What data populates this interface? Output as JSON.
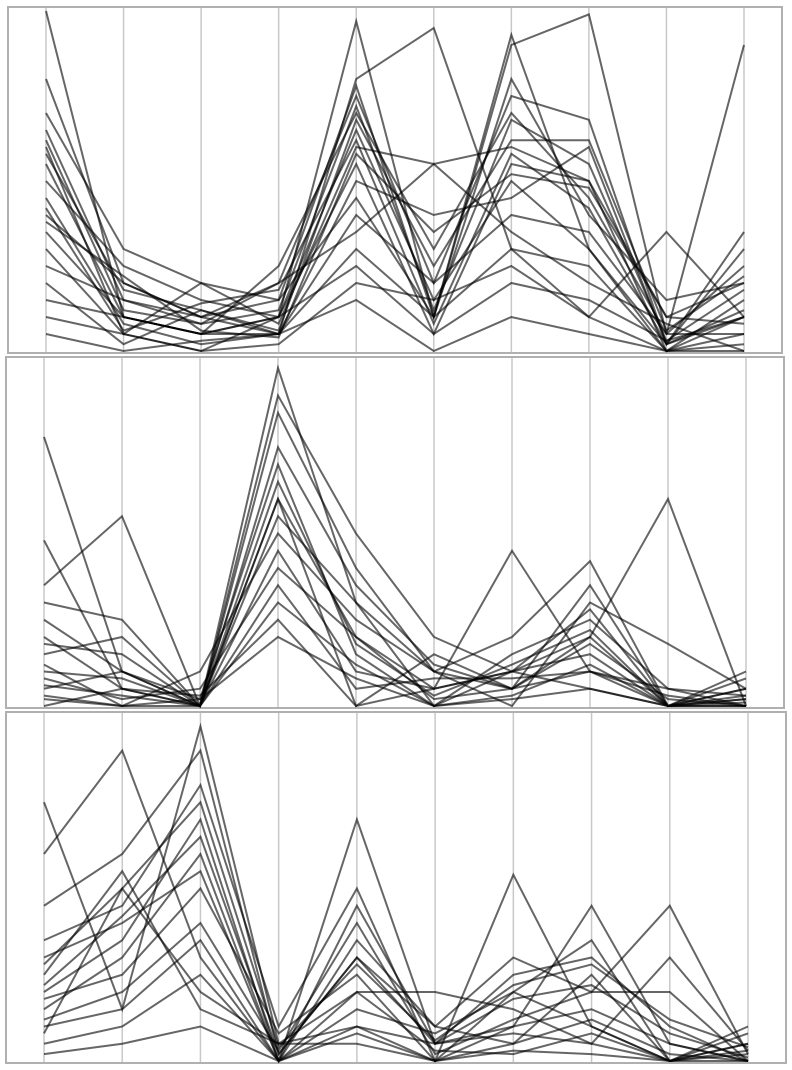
{
  "chart_data": [
    {
      "type": "parallel",
      "color": "#000000",
      "opacity": 0.6,
      "categories": [
        null,
        null,
        null,
        null,
        null,
        null,
        null,
        null,
        null,
        null
      ],
      "ylim": [
        0,
        1
      ],
      "series": [
        {
          "values": [
            1.0,
            0.1,
            0.05,
            0.1,
            0.97,
            0.1,
            0.9,
            0.99,
            0.05,
            0.9
          ]
        },
        {
          "values": [
            0.8,
            0.2,
            0.1,
            0.05,
            0.8,
            0.95,
            0.3,
            0.1,
            0.35,
            0.1
          ]
        },
        {
          "values": [
            0.7,
            0.3,
            0.2,
            0.15,
            0.78,
            0.1,
            0.93,
            0.3,
            0.02,
            0.3
          ]
        },
        {
          "values": [
            0.65,
            0.15,
            0.1,
            0.2,
            0.75,
            0.2,
            0.75,
            0.68,
            0.02,
            0.35
          ]
        },
        {
          "values": [
            0.6,
            0.05,
            0.2,
            0.08,
            0.6,
            0.55,
            0.6,
            0.5,
            0.1,
            0.2
          ]
        },
        {
          "values": [
            0.55,
            0.1,
            0.05,
            0.25,
            0.7,
            0.3,
            0.7,
            0.45,
            0.05,
            0.25
          ]
        },
        {
          "values": [
            0.5,
            0.25,
            0.15,
            0.1,
            0.55,
            0.05,
            0.55,
            0.5,
            0.0,
            0.15
          ]
        },
        {
          "values": [
            0.45,
            0.08,
            0.02,
            0.05,
            0.5,
            0.4,
            0.45,
            0.6,
            0.02,
            0.1
          ]
        },
        {
          "values": [
            0.4,
            0.2,
            0.1,
            0.15,
            0.45,
            0.1,
            0.8,
            0.4,
            0.15,
            0.2
          ]
        },
        {
          "values": [
            0.35,
            0.1,
            0.05,
            0.05,
            0.4,
            0.2,
            0.4,
            0.35,
            0.05,
            0.05
          ]
        },
        {
          "values": [
            0.3,
            0.05,
            0.0,
            0.1,
            0.65,
            0.15,
            0.5,
            0.3,
            0.0,
            0.1
          ]
        },
        {
          "values": [
            0.25,
            0.15,
            0.08,
            0.2,
            0.35,
            0.55,
            0.35,
            0.2,
            0.08,
            0.0
          ]
        },
        {
          "values": [
            0.2,
            0.02,
            0.12,
            0.05,
            0.3,
            0.1,
            0.3,
            0.25,
            0.0,
            0.05
          ]
        },
        {
          "values": [
            0.15,
            0.1,
            0.05,
            0.1,
            0.25,
            0.05,
            0.2,
            0.15,
            0.03,
            0.1
          ]
        },
        {
          "values": [
            0.1,
            0.05,
            0.0,
            0.02,
            0.2,
            0.15,
            0.25,
            0.1,
            0.0,
            0.02
          ]
        },
        {
          "values": [
            0.05,
            0.0,
            0.03,
            0.05,
            0.15,
            0.0,
            0.1,
            0.05,
            0.0,
            0.0
          ]
        },
        {
          "values": [
            0.62,
            0.12,
            0.08,
            0.12,
            0.72,
            0.12,
            0.68,
            0.55,
            0.03,
            0.18
          ]
        },
        {
          "values": [
            0.58,
            0.18,
            0.12,
            0.06,
            0.68,
            0.25,
            0.62,
            0.62,
            0.06,
            0.22
          ]
        },
        {
          "values": [
            0.42,
            0.06,
            0.14,
            0.18,
            0.62,
            0.08,
            0.58,
            0.42,
            0.02,
            0.12
          ]
        },
        {
          "values": [
            0.38,
            0.22,
            0.06,
            0.04,
            0.58,
            0.35,
            0.52,
            0.48,
            0.1,
            0.08
          ]
        }
      ]
    },
    {
      "type": "parallel",
      "color": "#000000",
      "opacity": 0.6,
      "categories": [
        null,
        null,
        null,
        null,
        null,
        null,
        null,
        null,
        null,
        null
      ],
      "ylim": [
        0,
        1
      ],
      "series": [
        {
          "values": [
            0.78,
            0.1,
            0.0,
            0.98,
            0.3,
            0.1,
            0.05,
            0.1,
            0.0,
            0.05
          ]
        },
        {
          "values": [
            0.48,
            0.05,
            0.0,
            0.9,
            0.5,
            0.2,
            0.1,
            0.05,
            0.0,
            0.02
          ]
        },
        {
          "values": [
            0.35,
            0.55,
            0.0,
            0.6,
            0.2,
            0.05,
            0.45,
            0.1,
            0.03,
            0.0
          ]
        },
        {
          "values": [
            0.3,
            0.25,
            0.0,
            0.85,
            0.4,
            0.1,
            0.2,
            0.42,
            0.0,
            0.05
          ]
        },
        {
          "values": [
            0.25,
            0.1,
            0.02,
            0.7,
            0.15,
            0.0,
            0.1,
            0.2,
            0.6,
            0.0
          ]
        },
        {
          "values": [
            0.2,
            0.05,
            0.0,
            0.6,
            0.0,
            0.15,
            0.05,
            0.35,
            0.0,
            0.1
          ]
        },
        {
          "values": [
            0.15,
            0.2,
            0.0,
            0.55,
            0.3,
            0.0,
            0.15,
            0.25,
            0.05,
            0.0
          ]
        },
        {
          "values": [
            0.12,
            0.0,
            0.1,
            0.5,
            0.25,
            0.1,
            0.0,
            0.3,
            0.18,
            0.05
          ]
        },
        {
          "values": [
            0.1,
            0.08,
            0.0,
            0.45,
            0.1,
            0.05,
            0.1,
            0.15,
            0.0,
            0.02
          ]
        },
        {
          "values": [
            0.08,
            0.02,
            0.05,
            0.4,
            0.2,
            0.02,
            0.05,
            0.2,
            0.0,
            0.0
          ]
        },
        {
          "values": [
            0.05,
            0.1,
            0.0,
            0.35,
            0.05,
            0.08,
            0.08,
            0.1,
            0.05,
            0.03
          ]
        },
        {
          "values": [
            0.03,
            0.0,
            0.0,
            0.3,
            0.12,
            0.0,
            0.02,
            0.05,
            0.0,
            0.0
          ]
        },
        {
          "values": [
            0.0,
            0.05,
            0.03,
            0.25,
            0.0,
            0.05,
            0.1,
            0.28,
            0.0,
            0.08
          ]
        },
        {
          "values": [
            0.18,
            0.15,
            0.0,
            0.75,
            0.35,
            0.12,
            0.05,
            0.18,
            0.02,
            0.0
          ]
        },
        {
          "values": [
            0.06,
            0.03,
            0.0,
            0.65,
            0.18,
            0.03,
            0.12,
            0.22,
            0.0,
            0.03
          ]
        },
        {
          "values": [
            0.02,
            0.0,
            0.02,
            0.2,
            0.08,
            0.0,
            0.03,
            0.12,
            0.0,
            0.01
          ]
        }
      ]
    },
    {
      "type": "parallel",
      "color": "#000000",
      "opacity": 0.6,
      "categories": [
        null,
        null,
        null,
        null,
        null,
        null,
        null,
        null,
        null,
        null
      ],
      "ylim": [
        0,
        1
      ],
      "series": [
        {
          "values": [
            0.75,
            0.15,
            0.97,
            0.05,
            0.1,
            0.0,
            0.54,
            0.1,
            0.0,
            0.05
          ]
        },
        {
          "values": [
            0.6,
            0.9,
            0.3,
            0.0,
            0.7,
            0.05,
            0.1,
            0.45,
            0.05,
            0.0
          ]
        },
        {
          "values": [
            0.45,
            0.6,
            0.9,
            0.02,
            0.3,
            0.1,
            0.3,
            0.2,
            0.45,
            0.02
          ]
        },
        {
          "values": [
            0.35,
            0.45,
            0.8,
            0.1,
            0.5,
            0.0,
            0.2,
            0.35,
            0.0,
            0.05
          ]
        },
        {
          "values": [
            0.3,
            0.4,
            0.55,
            0.0,
            0.45,
            0.05,
            0.25,
            0.3,
            0.1,
            0.0
          ]
        },
        {
          "values": [
            0.25,
            0.55,
            0.15,
            0.05,
            0.2,
            0.2,
            0.15,
            0.05,
            0.3,
            0.03
          ]
        },
        {
          "values": [
            0.2,
            0.35,
            0.7,
            0.0,
            0.35,
            0.1,
            0.05,
            0.25,
            0.0,
            0.08
          ]
        },
        {
          "values": [
            0.18,
            0.25,
            0.5,
            0.08,
            0.25,
            0.0,
            0.1,
            0.15,
            0.05,
            0.0
          ]
        },
        {
          "values": [
            0.15,
            0.3,
            0.6,
            0.0,
            0.15,
            0.08,
            0.2,
            0.1,
            0.0,
            0.02
          ]
        },
        {
          "values": [
            0.12,
            0.2,
            0.4,
            0.03,
            0.4,
            0.02,
            0.12,
            0.2,
            0.2,
            0.0
          ]
        },
        {
          "values": [
            0.1,
            0.15,
            0.35,
            0.0,
            0.1,
            0.05,
            0.08,
            0.05,
            0.0,
            0.1
          ]
        },
        {
          "values": [
            0.08,
            0.5,
            0.2,
            0.05,
            0.05,
            0.0,
            0.05,
            0.12,
            0.02,
            0.0
          ]
        },
        {
          "values": [
            0.05,
            0.1,
            0.25,
            0.0,
            0.2,
            0.03,
            0.02,
            0.08,
            0.0,
            0.03
          ]
        },
        {
          "values": [
            0.22,
            0.42,
            0.65,
            0.02,
            0.3,
            0.05,
            0.18,
            0.22,
            0.08,
            0.01
          ]
        },
        {
          "values": [
            0.28,
            0.5,
            0.75,
            0.04,
            0.28,
            0.06,
            0.22,
            0.28,
            0.12,
            0.04
          ]
        },
        {
          "values": [
            0.02,
            0.05,
            0.1,
            0.0,
            0.08,
            0.0,
            0.03,
            0.02,
            0.0,
            0.0
          ]
        }
      ]
    }
  ]
}
